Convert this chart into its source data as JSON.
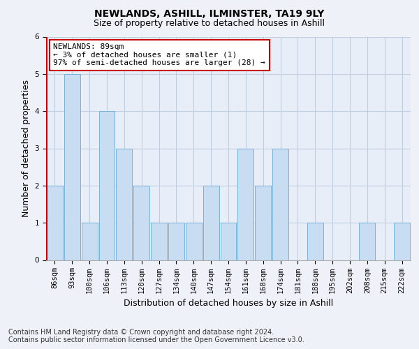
{
  "title": "NEWLANDS, ASHILL, ILMINSTER, TA19 9LY",
  "subtitle": "Size of property relative to detached houses in Ashill",
  "xlabel": "Distribution of detached houses by size in Ashill",
  "ylabel": "Number of detached properties",
  "categories": [
    "86sqm",
    "93sqm",
    "100sqm",
    "106sqm",
    "113sqm",
    "120sqm",
    "127sqm",
    "134sqm",
    "140sqm",
    "147sqm",
    "154sqm",
    "161sqm",
    "168sqm",
    "174sqm",
    "181sqm",
    "188sqm",
    "195sqm",
    "202sqm",
    "208sqm",
    "215sqm",
    "222sqm"
  ],
  "values": [
    2,
    5,
    1,
    4,
    3,
    2,
    1,
    1,
    1,
    2,
    1,
    3,
    2,
    3,
    0,
    1,
    0,
    0,
    1,
    0,
    1
  ],
  "bar_color": "#c9ddf2",
  "bar_edge_color": "#6baad4",
  "highlight_line_color": "#cc0000",
  "annotation_box_color": "#ffffff",
  "annotation_border_color": "#cc0000",
  "annotation_text_line1": "NEWLANDS: 89sqm",
  "annotation_text_line2": "← 3% of detached houses are smaller (1)",
  "annotation_text_line3": "97% of semi-detached houses are larger (28) →",
  "ylim": [
    0,
    6
  ],
  "yticks": [
    0,
    1,
    2,
    3,
    4,
    5,
    6
  ],
  "footer_line1": "Contains HM Land Registry data © Crown copyright and database right 2024.",
  "footer_line2": "Contains public sector information licensed under the Open Government Licence v3.0.",
  "background_color": "#eef2f8",
  "plot_background_color": "#e8eef8",
  "grid_color": "#c0cce0",
  "title_fontsize": 10,
  "subtitle_fontsize": 9,
  "xlabel_fontsize": 9,
  "ylabel_fontsize": 9,
  "tick_fontsize": 7.5,
  "annotation_fontsize": 8,
  "footer_fontsize": 7
}
